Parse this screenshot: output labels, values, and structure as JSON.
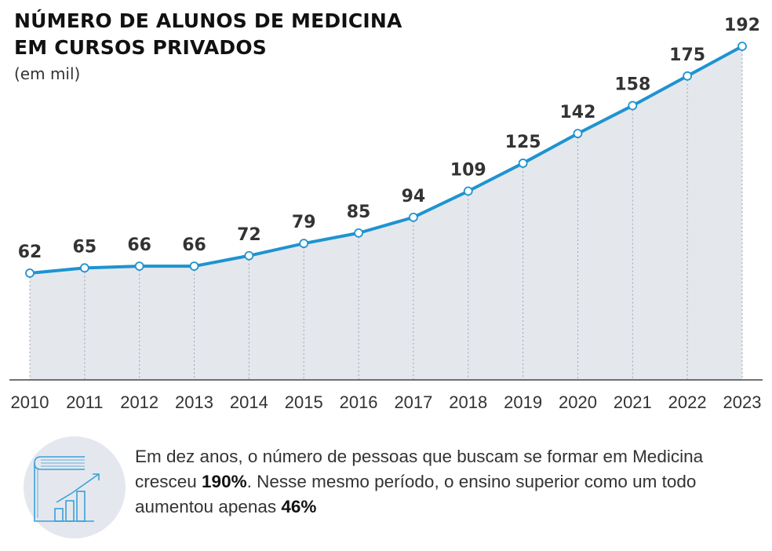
{
  "chart_data": {
    "type": "area",
    "title_line1": "NÚMERO DE ALUNOS DE MEDICINA",
    "title_line2": "EM CURSOS PRIVADOS",
    "subtitle": "(em mil)",
    "unit": "mil",
    "x": [
      "2010",
      "2011",
      "2012",
      "2013",
      "2014",
      "2015",
      "2016",
      "2017",
      "2018",
      "2019",
      "2020",
      "2021",
      "2022",
      "2023"
    ],
    "series": [
      {
        "name": "Alunos de Medicina em cursos privados",
        "values": [
          62,
          65,
          66,
          66,
          72,
          79,
          85,
          94,
          109,
          125,
          142,
          158,
          175,
          192
        ]
      }
    ],
    "data_labels": [
      "62",
      "65",
      "66",
      "66",
      "72",
      "79",
      "85",
      "94",
      "109",
      "125",
      "142",
      "158",
      "175",
      "192"
    ],
    "ylim": [
      0,
      192
    ],
    "grid": "vertical dotted lines at each year",
    "line_color": "#1f93d0",
    "area_color": "#e4e8ed"
  },
  "footer": {
    "icon": "book-growth-chart-icon",
    "text_part1": "Em dez anos, o número de pessoas que buscam se formar em Medicina cresceu ",
    "highlight1": "190%",
    "text_part2": ". Nesse mesmo período, o ensino superior como um todo aumentou apenas ",
    "highlight2": "46%"
  }
}
